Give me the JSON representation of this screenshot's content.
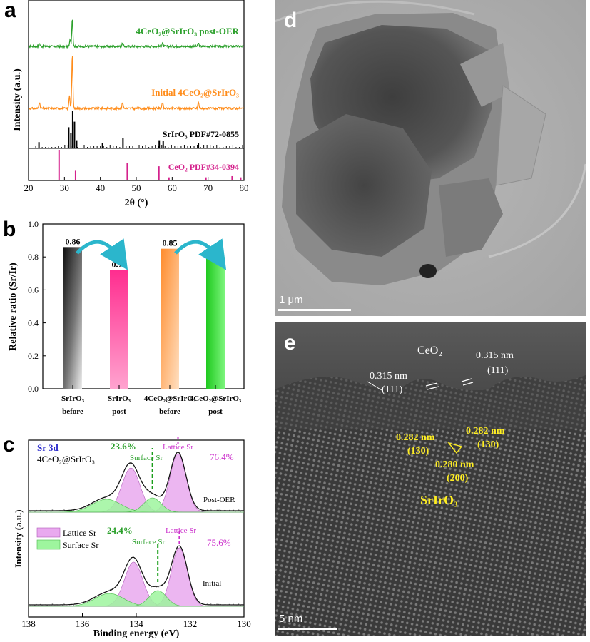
{
  "panels": {
    "a": {
      "letter": "a",
      "ylabel": "Intensity (a.u.)",
      "xlabel": "2θ (°)",
      "xlim": [
        20,
        80
      ],
      "xticks": [
        "20",
        "30",
        "40",
        "50",
        "60",
        "70",
        "80"
      ],
      "labels": {
        "post": "4CeO₂@SrIrO₃ post-OER",
        "initial": "Initial 4CeO₂@SrIrO₃",
        "srirO3_ref": "SrIrO₃ PDF#72-0855",
        "ceo2_ref": "CeO₂ PDF#34-0394"
      },
      "colors": {
        "post": "#2ca02c",
        "initial": "#ff8c1a",
        "srirO3_ref": "#000000",
        "ceo2_ref": "#d4218c"
      }
    },
    "b": {
      "letter": "b",
      "ylabel": "Relative ratio (Sr/Ir)",
      "ylim": [
        0.0,
        1.0
      ],
      "yticks": [
        "0.0",
        "0.2",
        "0.4",
        "0.6",
        "0.8",
        "1.0"
      ],
      "cat_line1": [
        "SrIrO₃",
        "SrIrO₃",
        "4CeO₂@SrIrO₃",
        "4CeO₂@SrIrO₃"
      ],
      "cat_line2": [
        "before",
        "post",
        "before",
        "post"
      ]
    },
    "c": {
      "letter": "c",
      "title1": "Sr 3d",
      "title2": "4CeO₂@SrIrO₃",
      "ylabel": "Intensity (a.u.)",
      "xlabel": "Binding energy (eV)",
      "xticks": [
        "138",
        "136",
        "134",
        "132",
        "130"
      ],
      "legend": [
        "Lattice Sr",
        "Surface Sr"
      ],
      "top": {
        "label": "Post-OER",
        "surface_pct": "23.6%",
        "lattice_pct": "76.4%",
        "surface_name": "Surface Sr",
        "lattice_name": "Lattice Sr"
      },
      "bottom": {
        "label": "Initial",
        "surface_pct": "24.4%",
        "lattice_pct": "75.6%",
        "surface_name": "Surface Sr",
        "lattice_name": "Lattice Sr"
      }
    },
    "d": {
      "letter": "d",
      "scale": "1 μm"
    },
    "e": {
      "letter": "e",
      "scale": "5 nm",
      "ceo2": "CeO₂",
      "d1": "0.315 nm",
      "p1": "(111)",
      "d2": "0.315 nm",
      "p2": "(111)",
      "y1": "0.282 nm",
      "yp1": "(130)",
      "y2": "0.282 nm",
      "yp2": "(130)",
      "y3": "0.280 nm",
      "yp3": "(200)",
      "phase": "SrIrO₃"
    }
  },
  "chart_data": [
    {
      "type": "bar",
      "categories": [
        "SrIrO₃ before",
        "SrIrO₃ post",
        "4CeO₂@SrIrO₃ before",
        "4CeO₂@SrIrO₃ post"
      ],
      "values": [
        0.86,
        0.72,
        0.85,
        0.8
      ],
      "ylabel": "Relative ratio (Sr/Ir)",
      "ylim": [
        0,
        1.0
      ],
      "colors": [
        "#555555",
        "#ff3d9a",
        "#ffa65c",
        "#2ee02e"
      ]
    },
    {
      "type": "line",
      "xlabel": "2θ (°)",
      "ylabel": "Intensity (a.u.)",
      "xlim": [
        20,
        80
      ],
      "series": [
        {
          "name": "4CeO₂@SrIrO₃ post-OER",
          "peaks": [
            32.2,
            31.6,
            46.2,
            57.3,
            67.3,
            23.0
          ]
        },
        {
          "name": "Initial 4CeO₂@SrIrO₃",
          "peaks": [
            32.2,
            31.4,
            46.2,
            57.3,
            67.3,
            23.0
          ]
        },
        {
          "name": "SrIrO₃ PDF#72-0855",
          "sticks": [
            [
              31.2,
              0.55
            ],
            [
              31.8,
              0.4
            ],
            [
              32.3,
              1.0
            ],
            [
              32.8,
              0.7
            ],
            [
              33.4,
              0.2
            ],
            [
              22.9,
              0.15
            ],
            [
              40.6,
              0.12
            ],
            [
              46.3,
              0.25
            ],
            [
              56.4,
              0.2
            ],
            [
              57.5,
              0.18
            ],
            [
              67.3,
              0.12
            ]
          ]
        },
        {
          "name": "CeO₂ PDF#34-0394",
          "sticks": [
            [
              28.5,
              1.0
            ],
            [
              33.1,
              0.3
            ],
            [
              47.5,
              0.55
            ],
            [
              56.3,
              0.45
            ],
            [
              59.1,
              0.08
            ],
            [
              69.4,
              0.08
            ],
            [
              76.7,
              0.12
            ],
            [
              79.1,
              0.08
            ]
          ]
        }
      ]
    },
    {
      "type": "area",
      "xlabel": "Binding energy (eV)",
      "ylabel": "Intensity (a.u.)",
      "xlim": [
        138,
        130
      ],
      "series": [
        {
          "name": "Post-OER",
          "lattice_peaks": [
            134.2,
            132.45
          ],
          "surface_peaks": [
            135.1,
            133.4
          ],
          "surface_pct": 23.6,
          "lattice_pct": 76.4
        },
        {
          "name": "Initial",
          "lattice_peaks": [
            134.1,
            132.4
          ],
          "surface_peaks": [
            135.0,
            133.2
          ],
          "surface_pct": 24.4,
          "lattice_pct": 75.6
        }
      ]
    }
  ]
}
